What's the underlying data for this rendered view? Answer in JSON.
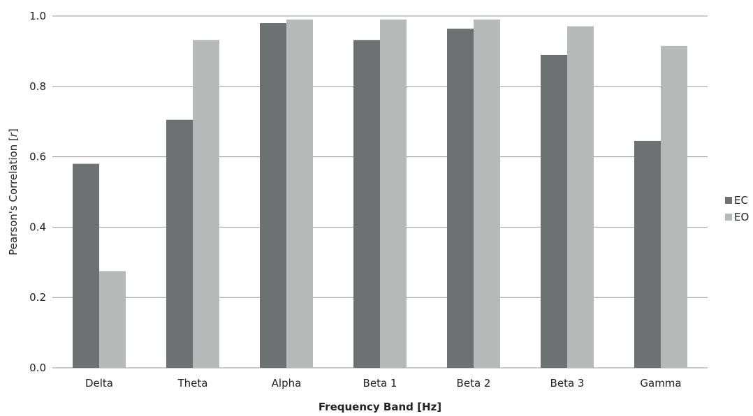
{
  "chart_data": {
    "type": "bar",
    "categories": [
      "Delta",
      "Theta",
      "Alpha",
      "Beta 1",
      "Beta 2",
      "Beta 3",
      "Gamma"
    ],
    "series": [
      {
        "name": "EC",
        "values": [
          0.58,
          0.705,
          0.98,
          0.932,
          0.964,
          0.889,
          0.645
        ],
        "color": "#6d7171"
      },
      {
        "name": "EO",
        "values": [
          0.275,
          0.932,
          0.99,
          0.99,
          0.99,
          0.971,
          0.915
        ],
        "color": "#b7b9b9"
      }
    ],
    "xlabel": "Frequency Band [Hz]",
    "ylabel_prefix": "Pearson's Correlation [",
    "ylabel_var": "r",
    "ylabel_suffix": "]",
    "ylim": [
      0,
      1.0
    ],
    "yticks": [
      "0.0",
      "0.2",
      "0.4",
      "0.6",
      "0.8",
      "1.0"
    ],
    "ytick_values": [
      0,
      0.2,
      0.4,
      0.6,
      0.8,
      1.0
    ],
    "grid": true,
    "legend_position": "right"
  }
}
